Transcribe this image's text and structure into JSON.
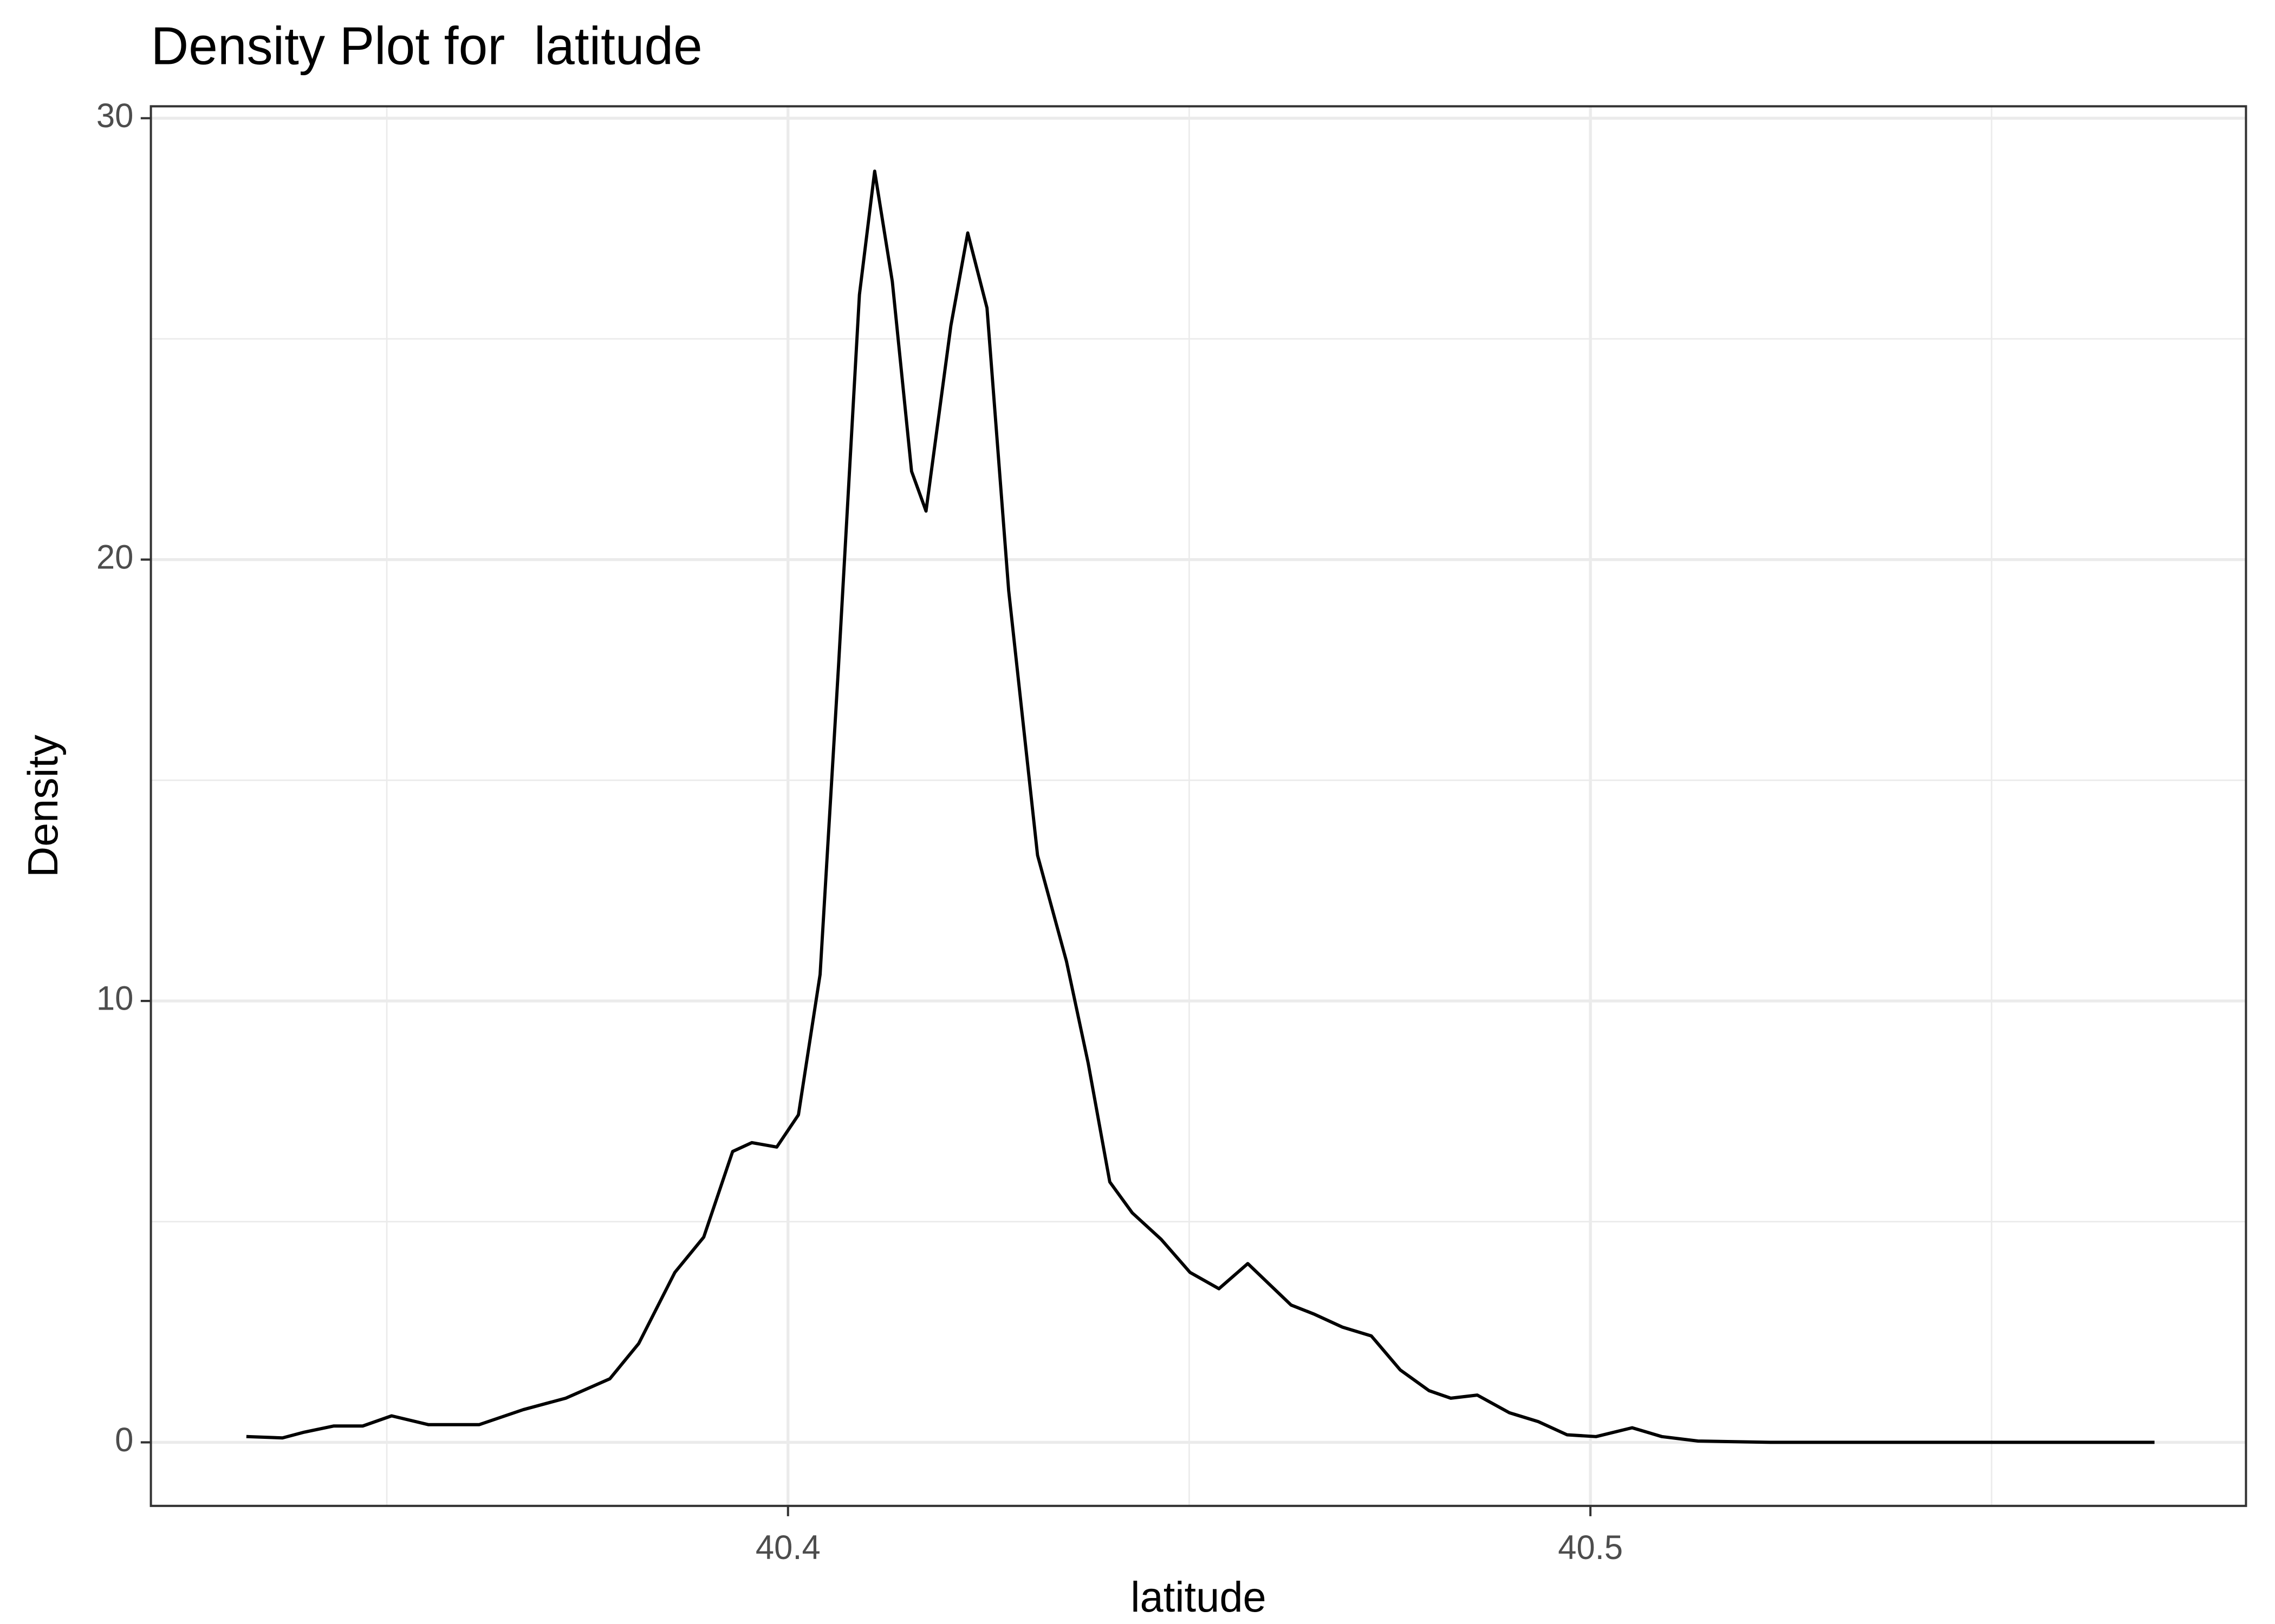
{
  "chart_data": {
    "type": "line",
    "title": "Density Plot for  latitude",
    "x_label": "latitude",
    "y_label": "Density",
    "x": [
      40.3325,
      40.337,
      40.3397,
      40.3434,
      40.347,
      40.3506,
      40.3552,
      40.3615,
      40.367,
      40.3723,
      40.3778,
      40.3814,
      40.3859,
      40.3895,
      40.3931,
      40.3955,
      40.3986,
      40.4013,
      40.404,
      40.4063,
      40.4089,
      40.4108,
      40.413,
      40.4154,
      40.4172,
      40.4203,
      40.4224,
      40.4248,
      40.4275,
      40.4311,
      40.4347,
      40.4374,
      40.4401,
      40.4429,
      40.4465,
      40.4501,
      40.4537,
      40.4573,
      40.46,
      40.4627,
      40.4655,
      40.4691,
      40.4727,
      40.4763,
      40.4799,
      40.4826,
      40.4859,
      40.4899,
      40.4935,
      40.4971,
      40.5007,
      40.5052,
      40.5089,
      40.5134,
      40.5224,
      40.5703
    ],
    "series": [
      {
        "name": "latitude",
        "color": "#000000",
        "values": [
          0.13,
          0.1,
          0.23,
          0.37,
          0.37,
          0.6,
          0.4,
          0.4,
          0.74,
          1.0,
          1.44,
          2.24,
          3.85,
          4.65,
          6.59,
          6.79,
          6.69,
          7.42,
          10.6,
          17.6,
          26.0,
          28.8,
          26.3,
          22.0,
          21.1,
          25.3,
          27.4,
          25.7,
          19.3,
          13.3,
          10.9,
          8.6,
          5.9,
          5.2,
          4.6,
          3.85,
          3.48,
          4.05,
          3.58,
          3.11,
          2.91,
          2.61,
          2.41,
          1.64,
          1.17,
          1.0,
          1.07,
          0.67,
          0.47,
          0.17,
          0.13,
          0.33,
          0.13,
          0.03,
          0,
          0
        ]
      }
    ],
    "xlim": [
      40.3206,
      40.5817
    ],
    "ylim": [
      -1.44,
      30.27
    ],
    "xticks": [
      40.4,
      40.5
    ],
    "yticks": [
      0,
      10,
      20,
      30
    ],
    "x_minor_ticks": [
      40.35,
      40.45,
      40.55
    ],
    "y_minor_ticks": [
      5,
      15,
      25
    ],
    "grid": true
  }
}
